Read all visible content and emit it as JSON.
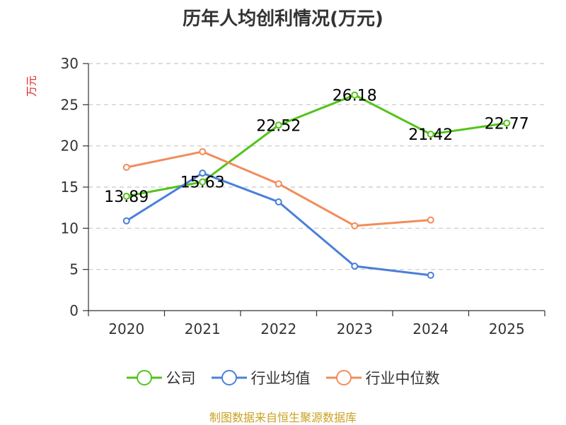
{
  "chart_data": {
    "type": "line",
    "title": "历年人均创利情况(万元)",
    "ylabel": "万元",
    "xlabel": "",
    "categories": [
      "2020",
      "2021",
      "2022",
      "2023",
      "2024",
      "2025"
    ],
    "ylim": [
      0,
      30
    ],
    "yticks": [
      0,
      5,
      10,
      15,
      20,
      25,
      30
    ],
    "grid": true,
    "legend_position": "bottom",
    "series": [
      {
        "name": "公司",
        "color": "#52c41a",
        "values": [
          13.89,
          15.63,
          22.52,
          26.18,
          21.42,
          22.77
        ],
        "labels": [
          "13.89",
          "15.63",
          "22.52",
          "26.18",
          "21.42",
          "22.77"
        ]
      },
      {
        "name": "行业均值",
        "color": "#4a7fd9",
        "values": [
          10.9,
          16.7,
          13.2,
          5.4,
          4.3,
          null
        ]
      },
      {
        "name": "行业中位数",
        "color": "#f28c5a",
        "values": [
          17.4,
          19.3,
          15.4,
          10.3,
          11.0,
          null
        ]
      }
    ]
  },
  "source_note": "制图数据来自恒生聚源数据库"
}
